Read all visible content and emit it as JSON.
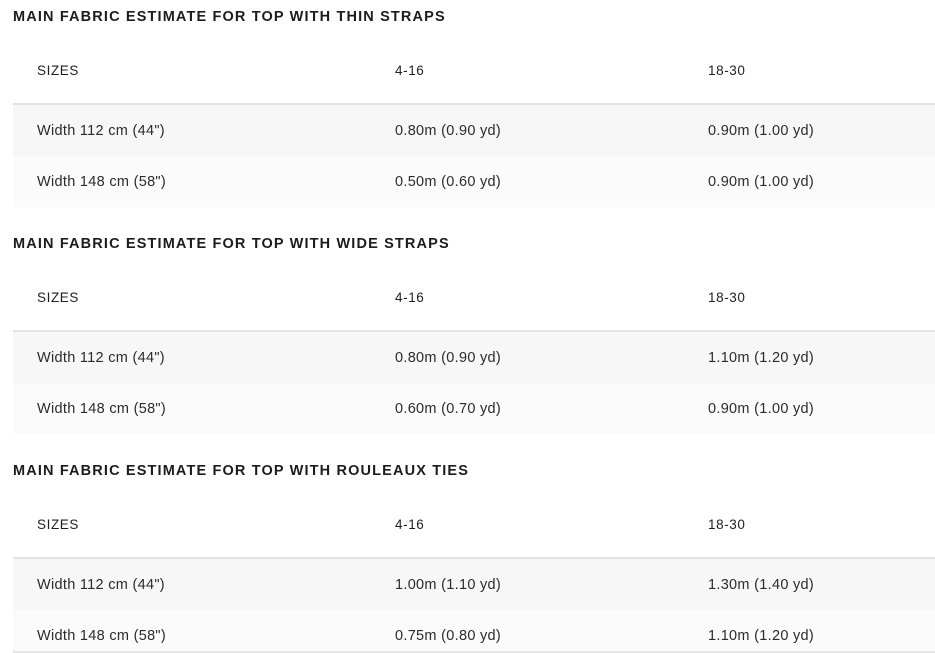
{
  "colors": {
    "page_background": "#ffffff",
    "heading_text": "#1c1c1e",
    "body_text": "#2b2b2d",
    "table_top_border": "#e3e3e3",
    "row_stripe_odd": "#f7f7f7",
    "row_stripe_even": "#fbfbfb"
  },
  "sections": [
    {
      "title": "MAIN FABRIC ESTIMATE FOR TOP WITH THIN STRAPS",
      "columns": [
        "SIZES",
        "4-16",
        "18-30"
      ],
      "rows": [
        {
          "cells": [
            "Width 112 cm (44\")",
            "0.80m (0.90 yd)",
            "0.90m (1.00 yd)"
          ]
        },
        {
          "cells": [
            "Width 148 cm (58\")",
            "0.50m (0.60 yd)",
            "0.90m (1.00 yd)"
          ]
        }
      ]
    },
    {
      "title": "MAIN FABRIC ESTIMATE FOR TOP WITH WIDE STRAPS",
      "columns": [
        "SIZES",
        "4-16",
        "18-30"
      ],
      "rows": [
        {
          "cells": [
            "Width 112 cm (44\")",
            "0.80m (0.90 yd)",
            "1.10m (1.20 yd)"
          ]
        },
        {
          "cells": [
            "Width 148 cm (58\")",
            "0.60m (0.70 yd)",
            "0.90m (1.00 yd)"
          ]
        }
      ]
    },
    {
      "title": "MAIN FABRIC ESTIMATE FOR TOP WITH ROULEAUX TIES",
      "columns": [
        "SIZES",
        "4-16",
        "18-30"
      ],
      "rows": [
        {
          "cells": [
            "Width 112 cm (44\")",
            "1.00m (1.10 yd)",
            "1.30m (1.40 yd)"
          ]
        },
        {
          "cells": [
            "Width 148 cm (58\")",
            "0.75m (0.80 yd)",
            "1.10m (1.20 yd)"
          ]
        }
      ]
    }
  ]
}
